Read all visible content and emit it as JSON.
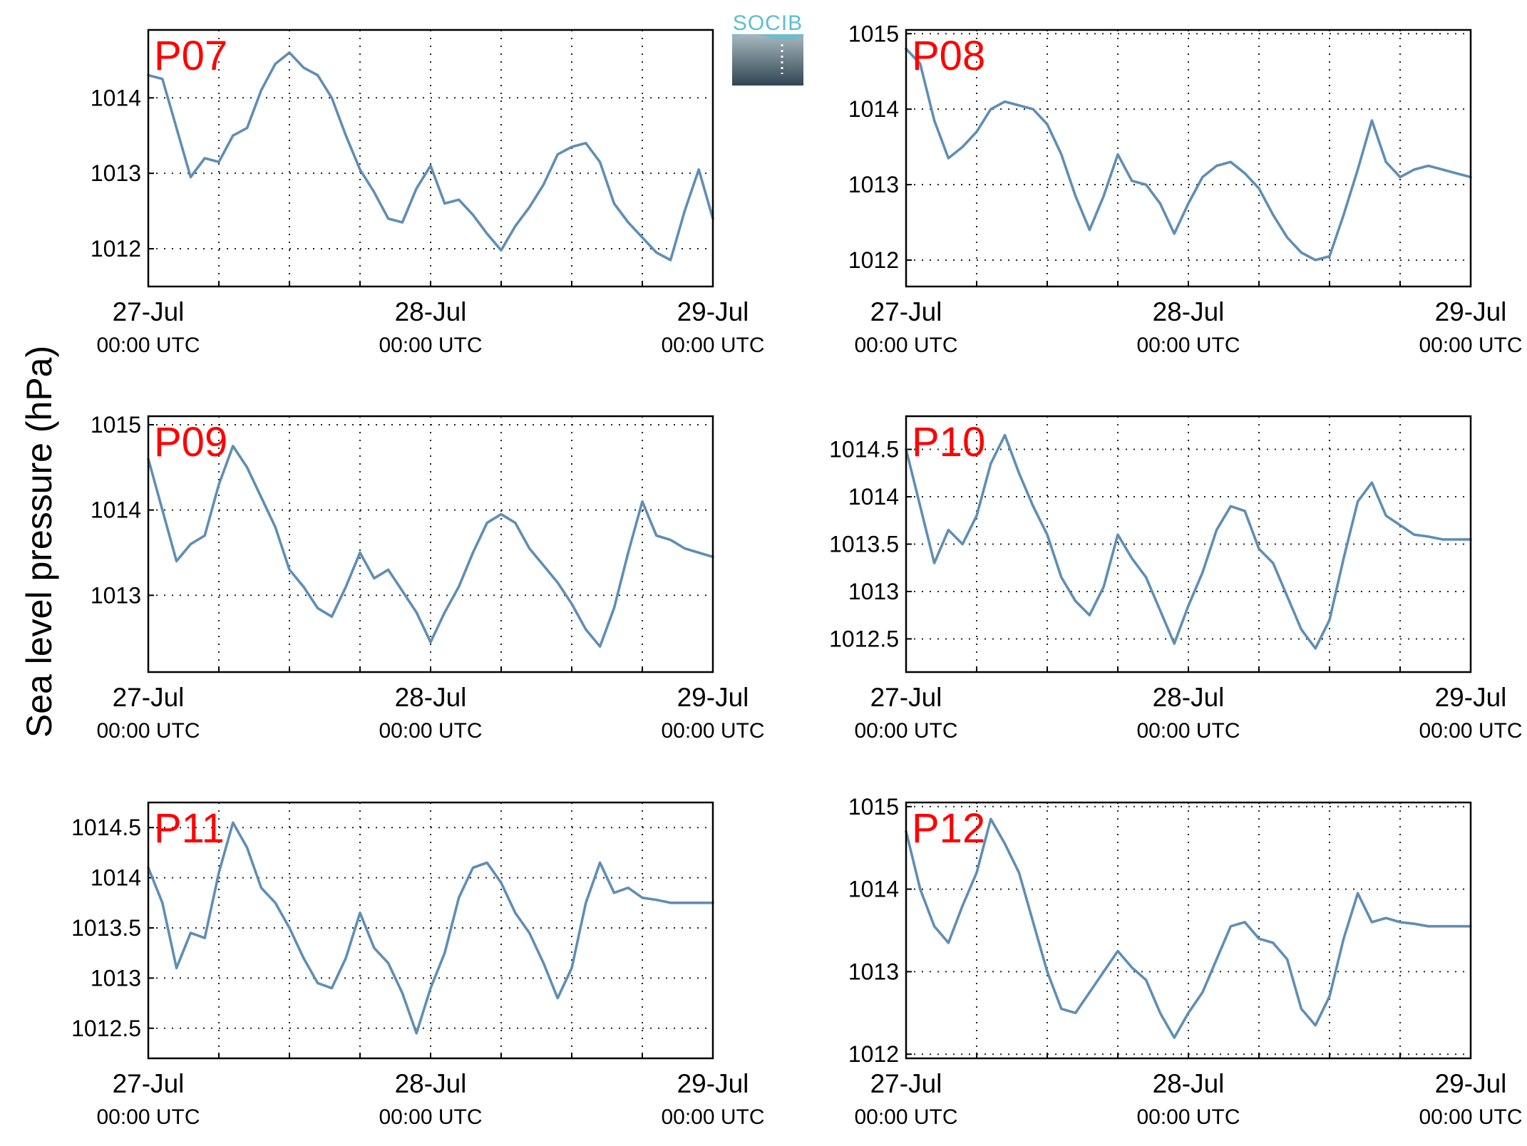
{
  "y_axis_label": "Sea level pressure (hPa)",
  "logo": {
    "text": "SOCIB"
  },
  "colors": {
    "series": "#5f8eb4",
    "station_label": "#ff0000",
    "logo_text": "#5bbfd0",
    "logo_dark": "#2f4652"
  },
  "chart_data": [
    {
      "type": "line",
      "station": "P07",
      "series": [
        {
          "name": "",
          "x": [
            0,
            0.05,
            0.1,
            0.15,
            0.2,
            0.25,
            0.3,
            0.35,
            0.4,
            0.45,
            0.5,
            0.55,
            0.6,
            0.65,
            0.7,
            0.75,
            0.8,
            0.85,
            0.9,
            0.95,
            1,
            1.05,
            1.1,
            1.15,
            1.2,
            1.25,
            1.3,
            1.35,
            1.4,
            1.45,
            1.5,
            1.55,
            1.6,
            1.65,
            1.7,
            1.75,
            1.8,
            1.85,
            1.9,
            1.95,
            2
          ],
          "y": [
            1014.3,
            1014.25,
            1013.6,
            1012.95,
            1013.2,
            1013.15,
            1013.5,
            1013.6,
            1014.1,
            1014.45,
            1014.6,
            1014.4,
            1014.3,
            1014.0,
            1013.5,
            1013.05,
            1012.75,
            1012.4,
            1012.35,
            1012.8,
            1013.1,
            1012.6,
            1012.65,
            1012.45,
            1012.2,
            1011.98,
            1012.3,
            1012.55,
            1012.85,
            1013.25,
            1013.35,
            1013.4,
            1013.15,
            1012.6,
            1012.35,
            1012.15,
            1011.95,
            1011.85,
            1012.5,
            1013.05,
            1012.4
          ]
        }
      ],
      "ylim": [
        1011.5,
        1014.9
      ],
      "yticks": [
        1012,
        1013,
        1014
      ],
      "xticks": [
        {
          "date": "27-Jul",
          "time": "00:00 UTC"
        },
        {
          "date": "28-Jul",
          "time": "00:00 UTC"
        },
        {
          "date": "29-Jul",
          "time": "00:00 UTC"
        }
      ],
      "xlim_days": [
        0,
        2
      ],
      "grid": true
    },
    {
      "type": "line",
      "station": "P08",
      "series": [
        {
          "name": "",
          "x": [
            0,
            0.05,
            0.1,
            0.15,
            0.2,
            0.25,
            0.3,
            0.35,
            0.4,
            0.45,
            0.5,
            0.55,
            0.6,
            0.65,
            0.7,
            0.75,
            0.8,
            0.85,
            0.9,
            0.95,
            1,
            1.05,
            1.1,
            1.15,
            1.2,
            1.25,
            1.3,
            1.35,
            1.4,
            1.45,
            1.5,
            1.55,
            1.6,
            1.65,
            1.7,
            1.75,
            1.8,
            1.85,
            1.9,
            1.95,
            2
          ],
          "y": [
            1014.8,
            1014.6,
            1013.85,
            1013.35,
            1013.5,
            1013.7,
            1014.0,
            1014.1,
            1014.05,
            1014.0,
            1013.8,
            1013.4,
            1012.85,
            1012.4,
            1012.85,
            1013.4,
            1013.05,
            1013.0,
            1012.75,
            1012.35,
            1012.75,
            1013.1,
            1013.25,
            1013.3,
            1013.15,
            1012.95,
            1012.6,
            1012.3,
            1012.1,
            1012.0,
            1012.05,
            1012.6,
            1013.2,
            1013.85,
            1013.3,
            1013.1,
            1013.2,
            1013.25,
            1013.2,
            1013.15,
            1013.1
          ]
        }
      ],
      "ylim": [
        1011.65,
        1015.05
      ],
      "yticks": [
        1012,
        1013,
        1014,
        1015
      ],
      "xticks": [
        {
          "date": "27-Jul",
          "time": "00:00 UTC"
        },
        {
          "date": "28-Jul",
          "time": "00:00 UTC"
        },
        {
          "date": "29-Jul",
          "time": "00:00 UTC"
        }
      ],
      "xlim_days": [
        0,
        2
      ],
      "grid": true
    },
    {
      "type": "line",
      "station": "P09",
      "series": [
        {
          "name": "",
          "x": [
            0,
            0.05,
            0.1,
            0.15,
            0.2,
            0.25,
            0.3,
            0.35,
            0.4,
            0.45,
            0.5,
            0.55,
            0.6,
            0.65,
            0.7,
            0.75,
            0.8,
            0.85,
            0.9,
            0.95,
            1,
            1.05,
            1.1,
            1.15,
            1.2,
            1.25,
            1.3,
            1.35,
            1.4,
            1.45,
            1.5,
            1.55,
            1.6,
            1.65,
            1.7,
            1.75,
            1.8,
            1.85,
            1.9,
            1.95,
            2
          ],
          "y": [
            1014.6,
            1014.0,
            1013.4,
            1013.6,
            1013.7,
            1014.3,
            1014.75,
            1014.5,
            1014.15,
            1013.8,
            1013.3,
            1013.1,
            1012.85,
            1012.75,
            1013.1,
            1013.5,
            1013.2,
            1013.3,
            1013.05,
            1012.8,
            1012.45,
            1012.8,
            1013.1,
            1013.5,
            1013.85,
            1013.95,
            1013.85,
            1013.55,
            1013.35,
            1013.15,
            1012.9,
            1012.6,
            1012.4,
            1012.85,
            1013.5,
            1014.1,
            1013.7,
            1013.65,
            1013.55,
            1013.5,
            1013.45
          ]
        }
      ],
      "ylim": [
        1012.1,
        1015.1
      ],
      "yticks": [
        1013,
        1014,
        1015
      ],
      "xticks": [
        {
          "date": "27-Jul",
          "time": "00:00 UTC"
        },
        {
          "date": "28-Jul",
          "time": "00:00 UTC"
        },
        {
          "date": "29-Jul",
          "time": "00:00 UTC"
        }
      ],
      "xlim_days": [
        0,
        2
      ],
      "grid": true
    },
    {
      "type": "line",
      "station": "P10",
      "series": [
        {
          "name": "",
          "x": [
            0,
            0.05,
            0.1,
            0.15,
            0.2,
            0.25,
            0.3,
            0.35,
            0.4,
            0.45,
            0.5,
            0.55,
            0.6,
            0.65,
            0.7,
            0.75,
            0.8,
            0.85,
            0.9,
            0.95,
            1,
            1.05,
            1.1,
            1.15,
            1.2,
            1.25,
            1.3,
            1.35,
            1.4,
            1.45,
            1.5,
            1.55,
            1.6,
            1.65,
            1.7,
            1.75,
            1.8,
            1.85,
            1.9,
            1.95,
            2
          ],
          "y": [
            1014.5,
            1013.9,
            1013.3,
            1013.65,
            1013.5,
            1013.8,
            1014.35,
            1014.65,
            1014.25,
            1013.9,
            1013.6,
            1013.15,
            1012.9,
            1012.75,
            1013.05,
            1013.6,
            1013.35,
            1013.15,
            1012.8,
            1012.45,
            1012.85,
            1013.2,
            1013.65,
            1013.9,
            1013.85,
            1013.45,
            1013.3,
            1012.95,
            1012.6,
            1012.4,
            1012.7,
            1013.35,
            1013.95,
            1014.15,
            1013.8,
            1013.7,
            1013.6,
            1013.58,
            1013.55,
            1013.55,
            1013.55
          ]
        }
      ],
      "ylim": [
        1012.15,
        1014.85
      ],
      "yticks": [
        1012.5,
        1013,
        1013.5,
        1014,
        1014.5
      ],
      "xticks": [
        {
          "date": "27-Jul",
          "time": "00:00 UTC"
        },
        {
          "date": "28-Jul",
          "time": "00:00 UTC"
        },
        {
          "date": "29-Jul",
          "time": "00:00 UTC"
        }
      ],
      "xlim_days": [
        0,
        2
      ],
      "grid": true
    },
    {
      "type": "line",
      "station": "P11",
      "series": [
        {
          "name": "",
          "x": [
            0,
            0.05,
            0.1,
            0.15,
            0.2,
            0.25,
            0.3,
            0.35,
            0.4,
            0.45,
            0.5,
            0.55,
            0.6,
            0.65,
            0.7,
            0.75,
            0.8,
            0.85,
            0.9,
            0.95,
            1,
            1.05,
            1.1,
            1.15,
            1.2,
            1.25,
            1.3,
            1.35,
            1.4,
            1.45,
            1.5,
            1.55,
            1.6,
            1.65,
            1.7,
            1.75,
            1.8,
            1.85,
            1.9,
            1.95,
            2
          ],
          "y": [
            1014.1,
            1013.75,
            1013.1,
            1013.45,
            1013.4,
            1014.05,
            1014.55,
            1014.3,
            1013.9,
            1013.75,
            1013.5,
            1013.2,
            1012.95,
            1012.9,
            1013.2,
            1013.65,
            1013.3,
            1013.15,
            1012.85,
            1012.45,
            1012.9,
            1013.25,
            1013.8,
            1014.1,
            1014.15,
            1013.95,
            1013.65,
            1013.45,
            1013.15,
            1012.8,
            1013.1,
            1013.75,
            1014.15,
            1013.85,
            1013.9,
            1013.8,
            1013.78,
            1013.75,
            1013.75,
            1013.75,
            1013.75
          ]
        }
      ],
      "ylim": [
        1012.2,
        1014.75
      ],
      "yticks": [
        1012.5,
        1013,
        1013.5,
        1014,
        1014.5
      ],
      "xticks": [
        {
          "date": "27-Jul",
          "time": "00:00 UTC"
        },
        {
          "date": "28-Jul",
          "time": "00:00 UTC"
        },
        {
          "date": "29-Jul",
          "time": "00:00 UTC"
        }
      ],
      "xlim_days": [
        0,
        2
      ],
      "grid": true
    },
    {
      "type": "line",
      "station": "P12",
      "series": [
        {
          "name": "",
          "x": [
            0,
            0.05,
            0.1,
            0.15,
            0.2,
            0.25,
            0.3,
            0.35,
            0.4,
            0.45,
            0.5,
            0.55,
            0.6,
            0.65,
            0.7,
            0.75,
            0.8,
            0.85,
            0.9,
            0.95,
            1,
            1.05,
            1.1,
            1.15,
            1.2,
            1.25,
            1.3,
            1.35,
            1.4,
            1.45,
            1.5,
            1.55,
            1.6,
            1.65,
            1.7,
            1.75,
            1.8,
            1.85,
            1.9,
            1.95,
            2
          ],
          "y": [
            1014.7,
            1014.0,
            1013.55,
            1013.35,
            1013.8,
            1014.2,
            1014.85,
            1014.55,
            1014.2,
            1013.6,
            1013.0,
            1012.55,
            1012.5,
            1012.75,
            1013.0,
            1013.25,
            1013.05,
            1012.9,
            1012.5,
            1012.2,
            1012.5,
            1012.75,
            1013.15,
            1013.55,
            1013.6,
            1013.4,
            1013.35,
            1013.15,
            1012.55,
            1012.35,
            1012.7,
            1013.4,
            1013.95,
            1013.6,
            1013.65,
            1013.6,
            1013.58,
            1013.55,
            1013.55,
            1013.55,
            1013.55
          ]
        }
      ],
      "ylim": [
        1011.95,
        1015.05
      ],
      "yticks": [
        1012,
        1013,
        1014,
        1015
      ],
      "xticks": [
        {
          "date": "27-Jul",
          "time": "00:00 UTC"
        },
        {
          "date": "28-Jul",
          "time": "00:00 UTC"
        },
        {
          "date": "29-Jul",
          "time": "00:00 UTC"
        }
      ],
      "xlim_days": [
        0,
        2
      ],
      "grid": true
    }
  ]
}
